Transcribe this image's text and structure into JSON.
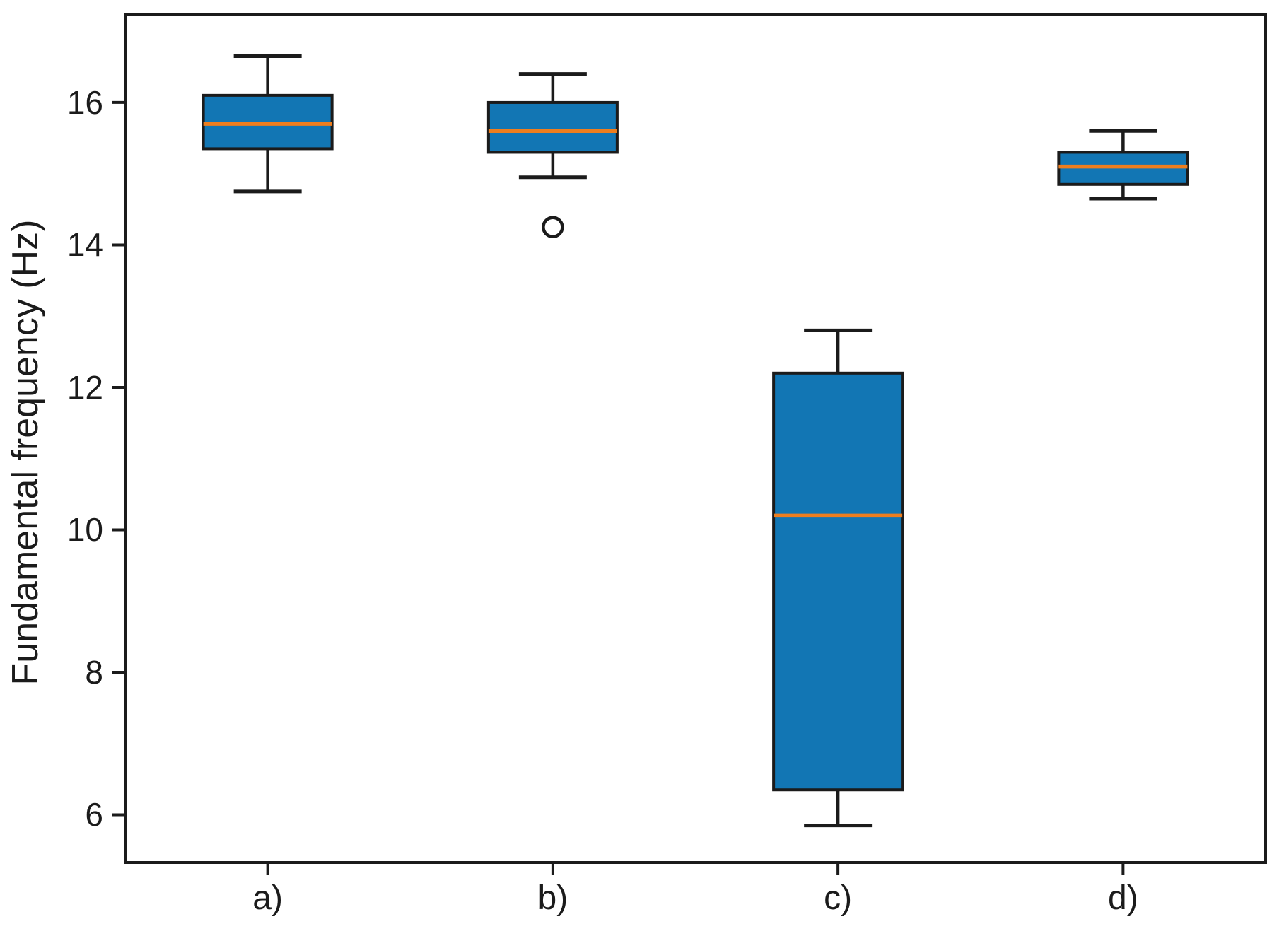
{
  "chart_data": {
    "type": "boxplot",
    "title": "",
    "xlabel": "",
    "ylabel": "Fundamental frequency (Hz)",
    "categories": [
      "a)",
      "b)",
      "c)",
      "d)"
    ],
    "y_ticks": [
      6,
      8,
      10,
      12,
      14,
      16
    ],
    "ylim": [
      5.33,
      17.23
    ],
    "grid": false,
    "legend": "none",
    "colors": {
      "box_fill": "#1276b4",
      "median_line": "#ee7e1e",
      "line": "#1b1b1b",
      "text": "#1b1b1b",
      "background": "#ffffff"
    },
    "series": [
      {
        "label": "a)",
        "whisker_low": 14.75,
        "q1": 15.35,
        "median": 15.7,
        "q3": 16.1,
        "whisker_high": 16.65,
        "outliers": []
      },
      {
        "label": "b)",
        "whisker_low": 14.95,
        "q1": 15.3,
        "median": 15.6,
        "q3": 16.0,
        "whisker_high": 16.4,
        "outliers": [
          14.25
        ]
      },
      {
        "label": "c)",
        "whisker_low": 5.85,
        "q1": 6.35,
        "median": 10.2,
        "q3": 12.2,
        "whisker_high": 12.8,
        "outliers": []
      },
      {
        "label": "d)",
        "whisker_low": 14.65,
        "q1": 14.85,
        "median": 15.1,
        "q3": 15.3,
        "whisker_high": 15.6,
        "outliers": []
      }
    ]
  }
}
